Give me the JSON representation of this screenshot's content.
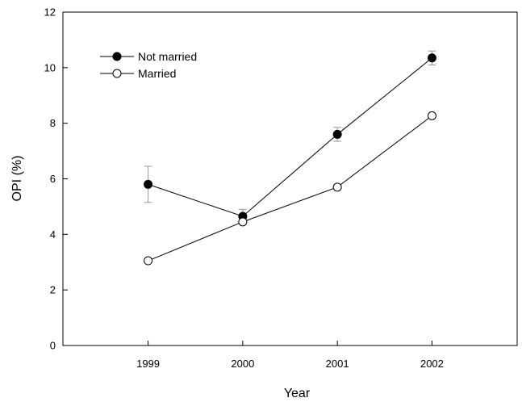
{
  "chart_data": {
    "type": "line",
    "title": "",
    "xlabel": "Year",
    "ylabel": "OPI (%)",
    "x": [
      "1999",
      "2000",
      "2001",
      "2002"
    ],
    "xlim": [
      1998.1,
      2002.9
    ],
    "ylim": [
      0,
      12
    ],
    "yticks": [
      "0",
      "2",
      "4",
      "6",
      "8",
      "10",
      "12"
    ],
    "grid": false,
    "legend_position": "top-left",
    "series": [
      {
        "name": "Not married",
        "marker": "filled-circle",
        "color": "#000000",
        "values": [
          5.8,
          4.65,
          7.6,
          10.35
        ],
        "error": [
          0.65,
          0.25,
          0.25,
          0.25
        ]
      },
      {
        "name": "Married",
        "marker": "open-circle",
        "color": "#000000",
        "values": [
          3.05,
          4.45,
          5.7,
          8.27
        ],
        "error": [
          0,
          0,
          0,
          0
        ]
      }
    ]
  }
}
